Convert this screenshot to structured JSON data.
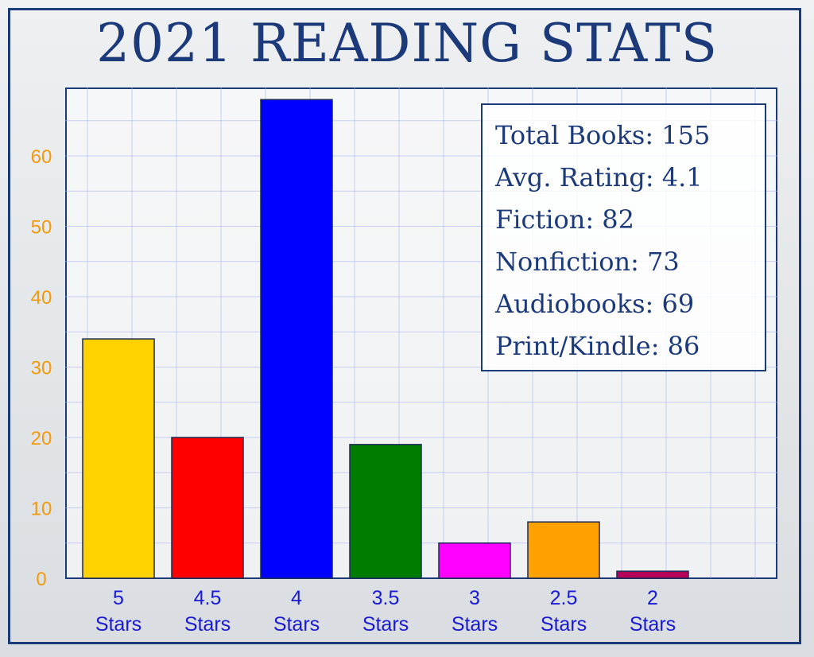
{
  "title": "2021 READING STATS",
  "stats": [
    "Total Books: 155",
    "Avg. Rating: 4.1",
    "Fiction: 82",
    "Nonfiction: 73",
    "Audiobooks: 69",
    "Print/Kindle: 86"
  ],
  "colors": {
    "title": "#1c3a7a",
    "frame": "#1b3a78",
    "ytick": "#f29a0c",
    "xtick": "#1a1ad6",
    "grid": "#a9b4f0"
  },
  "chart_data": {
    "type": "bar",
    "title": "",
    "xlabel": "",
    "ylabel": "",
    "ylim": [
      0,
      68
    ],
    "yticks": [
      0,
      10,
      20,
      30,
      40,
      50,
      60
    ],
    "grid": true,
    "categories": [
      [
        "5",
        "Stars"
      ],
      [
        "4.5",
        "Stars"
      ],
      [
        "4",
        "Stars"
      ],
      [
        "3.5",
        "Stars"
      ],
      [
        "3",
        "Stars"
      ],
      [
        "2.5",
        "Stars"
      ],
      [
        "2",
        "Stars"
      ]
    ],
    "values": [
      34,
      20,
      68,
      19,
      5,
      8,
      1
    ],
    "bar_colors": [
      "#ffd200",
      "#ff0000",
      "#0000ff",
      "#007d00",
      "#ff00ff",
      "#ffa100",
      "#b5005a"
    ]
  }
}
